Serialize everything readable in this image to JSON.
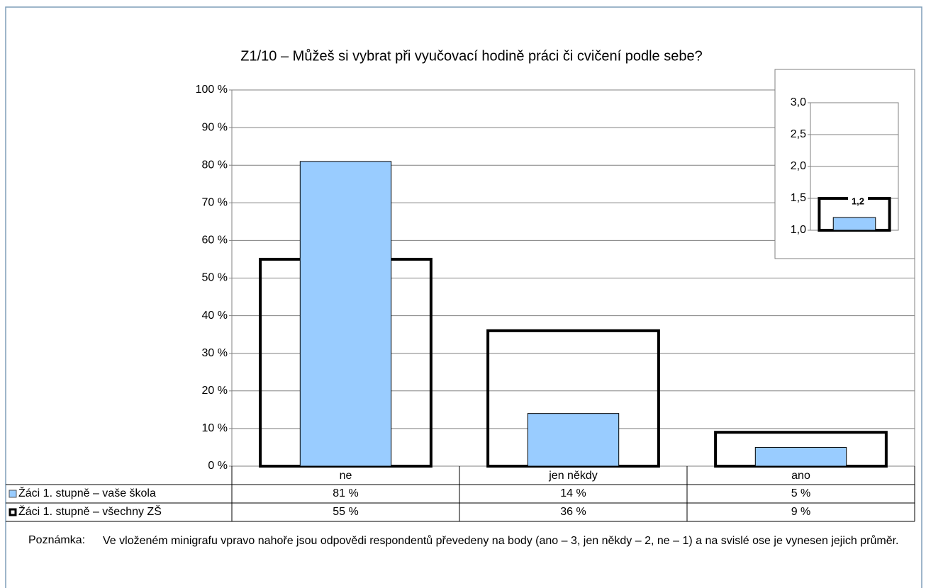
{
  "chart_data": [
    {
      "type": "bar",
      "title": "Z1/10 – Můžeš si vybrat při vyučovací hodině práci či cvičení podle sebe?",
      "categories": [
        "ne",
        "jen někdy",
        "ano"
      ],
      "series": [
        {
          "name": "Žáci 1. stupně – vaše škola",
          "color": "#99ccff",
          "values": [
            81,
            14,
            5
          ],
          "value_labels": [
            "81 %",
            "14 %",
            "5 %"
          ]
        },
        {
          "name": "Žáci 1. stupně – všechny ZŠ",
          "color": "#000000",
          "values": [
            55,
            36,
            9
          ],
          "value_labels": [
            "55 %",
            "36 %",
            "9 %"
          ]
        }
      ],
      "ylim": [
        0,
        100
      ],
      "yticks": [
        {
          "value": 0,
          "label": "0 %"
        },
        {
          "value": 10,
          "label": "10 %"
        },
        {
          "value": 20,
          "label": "20 %"
        },
        {
          "value": 30,
          "label": "30 %"
        },
        {
          "value": 40,
          "label": "40 %"
        },
        {
          "value": 50,
          "label": "50 %"
        },
        {
          "value": 60,
          "label": "60 %"
        },
        {
          "value": 70,
          "label": "70 %"
        },
        {
          "value": 80,
          "label": "80 %"
        },
        {
          "value": 90,
          "label": "90 %"
        },
        {
          "value": 100,
          "label": "100 %"
        }
      ],
      "grid": true
    },
    {
      "type": "bar",
      "series": [
        {
          "color": "#99ccff",
          "values": [
            1.2
          ],
          "value_labels": [
            "1,2"
          ]
        },
        {
          "color": "#000000",
          "values": [
            1.5
          ]
        }
      ],
      "ylim": [
        1,
        3
      ],
      "yticks": [
        {
          "value": 1,
          "label": "1,0"
        },
        {
          "value": 1.5,
          "label": "1,5"
        },
        {
          "value": 2,
          "label": "2,0"
        },
        {
          "value": 2.5,
          "label": "2,5"
        },
        {
          "value": 3,
          "label": "3,0"
        }
      ],
      "grid": true
    }
  ],
  "note": {
    "label": "Poznámka:",
    "text": "Ve vloženém minigrafu vpravo nahoře jsou odpovědi respondentů převedeny na body (ano – 3, jen někdy – 2, ne – 1) a na svislé ose je vynesen jejich průměr."
  }
}
